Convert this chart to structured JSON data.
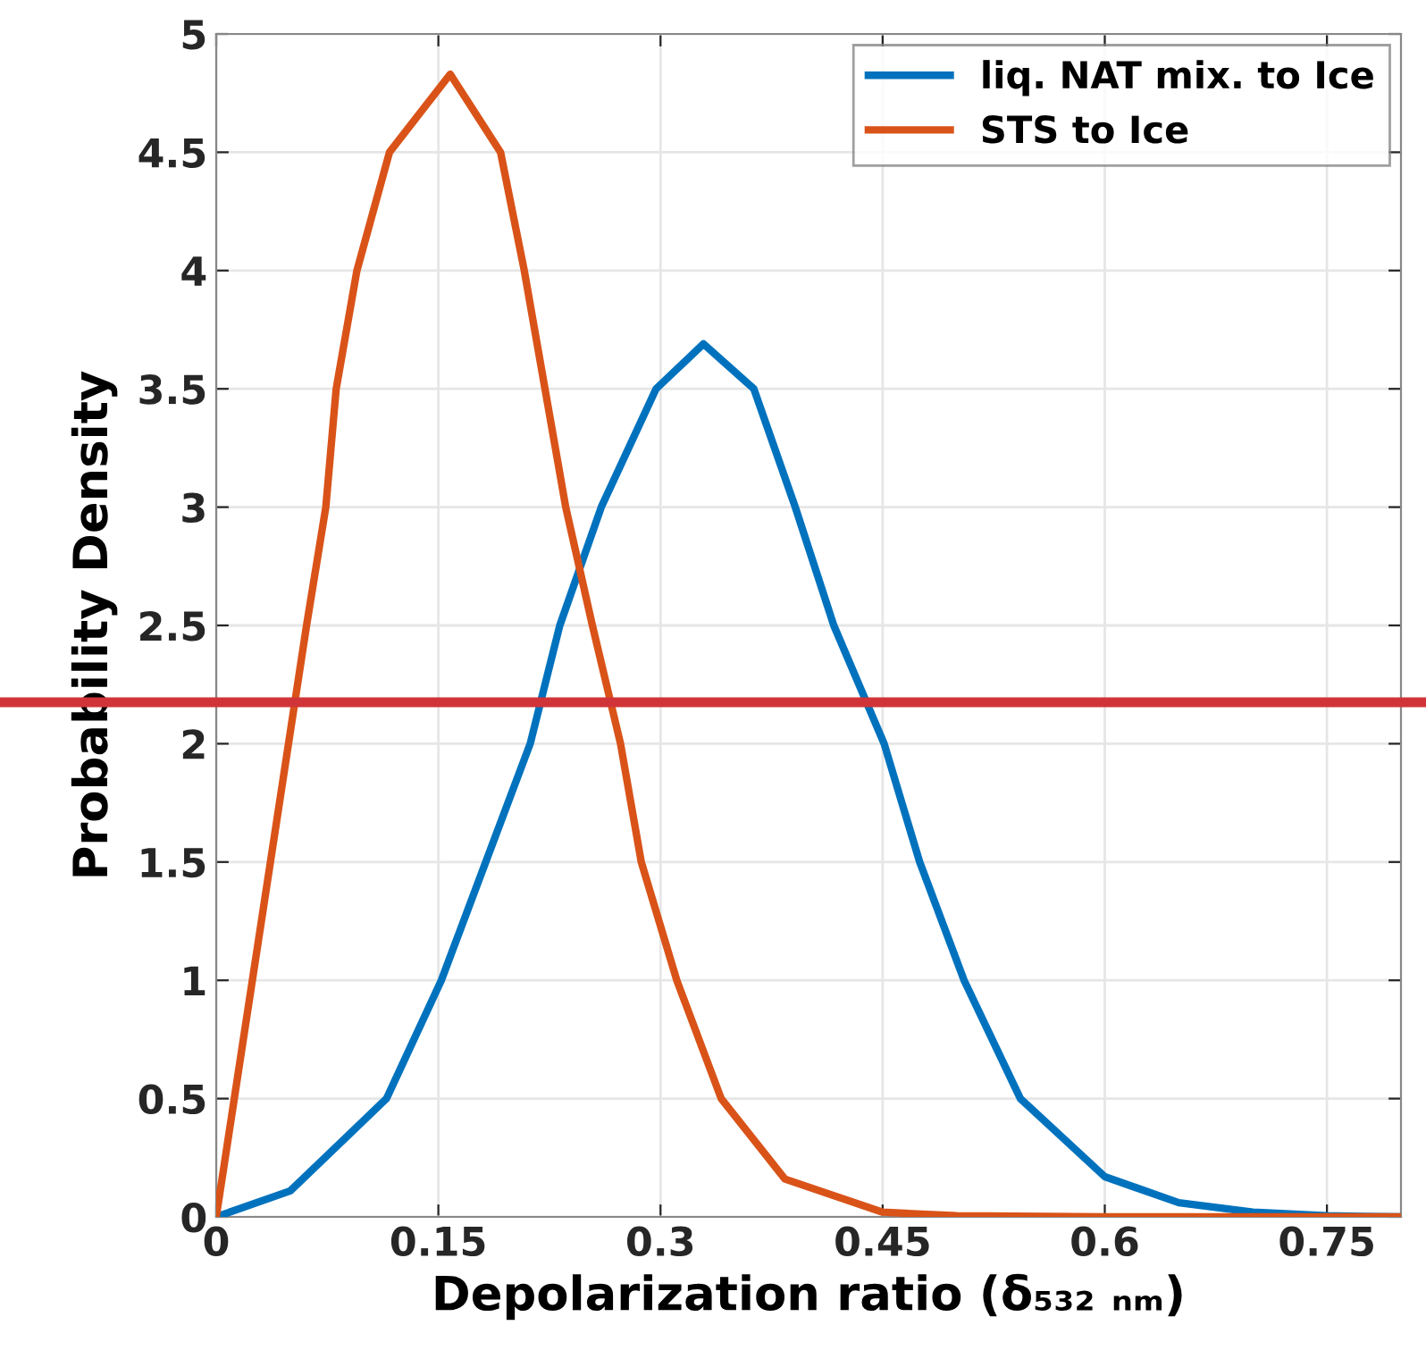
{
  "chart_data": {
    "type": "line",
    "xlabel": "Depolarization ratio (δ₅₃₂ ₙₘ)",
    "ylabel": "Probability Density",
    "series": [
      {
        "name": "liq. NAT mix. to Ice",
        "color": "#0072bd",
        "x": [
          0,
          0.05,
          0.115,
          0.152,
          0.182,
          0.212,
          0.232,
          0.26,
          0.297,
          0.329,
          0.363,
          0.391,
          0.417,
          0.451,
          0.475,
          0.505,
          0.543,
          0.6,
          0.65,
          0.7,
          0.75,
          0.8
        ],
        "values": [
          0,
          0.11,
          0.5,
          1,
          1.5,
          2,
          2.5,
          3,
          3.5,
          3.69,
          3.5,
          3,
          2.5,
          2,
          1.5,
          1,
          0.5,
          0.17,
          0.06,
          0.02,
          0.005,
          0
        ]
      },
      {
        "name": "STS to Ice",
        "color": "#d95319",
        "x": [
          0,
          0.061,
          0.074,
          0.081,
          0.095,
          0.117,
          0.158,
          0.192,
          0.208,
          0.222,
          0.236,
          0.254,
          0.273,
          0.287,
          0.311,
          0.341,
          0.384,
          0.45,
          0.5,
          0.6,
          0.8
        ],
        "values": [
          0,
          2.5,
          3,
          3.5,
          4,
          4.5,
          4.83,
          4.5,
          4,
          3.5,
          3,
          2.5,
          2,
          1.5,
          1,
          0.5,
          0.16,
          0.02,
          0.005,
          0,
          0
        ]
      }
    ],
    "ref_lines": [
      {
        "axis": "y",
        "value": 2.175,
        "color": "#d13438"
      }
    ],
    "xlim": [
      0,
      0.8
    ],
    "xticks": [
      0,
      0.15,
      0.3,
      0.45,
      0.6,
      0.75
    ],
    "ylim": [
      0,
      5
    ],
    "yticks": [
      0,
      0.5,
      1,
      1.5,
      2,
      2.5,
      3,
      3.5,
      4,
      4.5,
      5
    ],
    "grid": true,
    "legend": "top right",
    "marker": "none",
    "line_style": "solid"
  }
}
